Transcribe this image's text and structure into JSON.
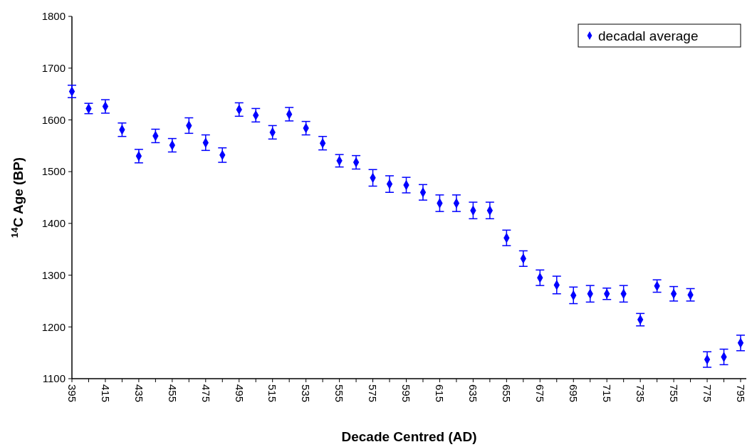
{
  "chart_data": {
    "type": "scatter",
    "xlabel": "Decade Centred (AD)",
    "ylabel": "$^{14}$C Age (BP)",
    "categories": [
      "395",
      null,
      "415",
      null,
      "435",
      null,
      "455",
      null,
      "475",
      null,
      "495",
      null,
      "515",
      null,
      "535",
      null,
      "555",
      null,
      "575",
      null,
      "595",
      null,
      "615",
      null,
      "635",
      null,
      "655",
      null,
      "675",
      null,
      "695",
      null,
      "715",
      null,
      "735",
      null,
      "755",
      null,
      "775",
      null,
      "795"
    ],
    "series": [
      {
        "name": "decadal average",
        "color": "#0000ff",
        "values": [
          1655,
          1622,
          1626,
          1581,
          1530,
          1569,
          1551,
          1589,
          1556,
          1532,
          1620,
          1609,
          1576,
          1611,
          1584,
          1555,
          1521,
          1518,
          1488,
          1476,
          1474,
          1460,
          1439,
          1439,
          1425,
          1425,
          1372,
          1332,
          1295,
          1281,
          1261,
          1264,
          1264,
          1264,
          1214,
          1279,
          1264,
          1262,
          1137,
          1142,
          1169
        ],
        "errors": [
          12,
          10,
          13,
          13,
          13,
          13,
          13,
          15,
          15,
          14,
          13,
          13,
          13,
          13,
          13,
          13,
          12,
          13,
          16,
          16,
          15,
          15,
          16,
          16,
          16,
          16,
          15,
          15,
          15,
          17,
          16,
          16,
          11,
          16,
          12,
          12,
          14,
          12,
          15,
          15,
          15
        ]
      }
    ],
    "ylim": [
      1100,
      1800
    ],
    "yticks": [
      1100,
      1200,
      1300,
      1400,
      1500,
      1600,
      1700,
      1800
    ],
    "marker": "diamond",
    "legend": "top right",
    "grid": false
  }
}
